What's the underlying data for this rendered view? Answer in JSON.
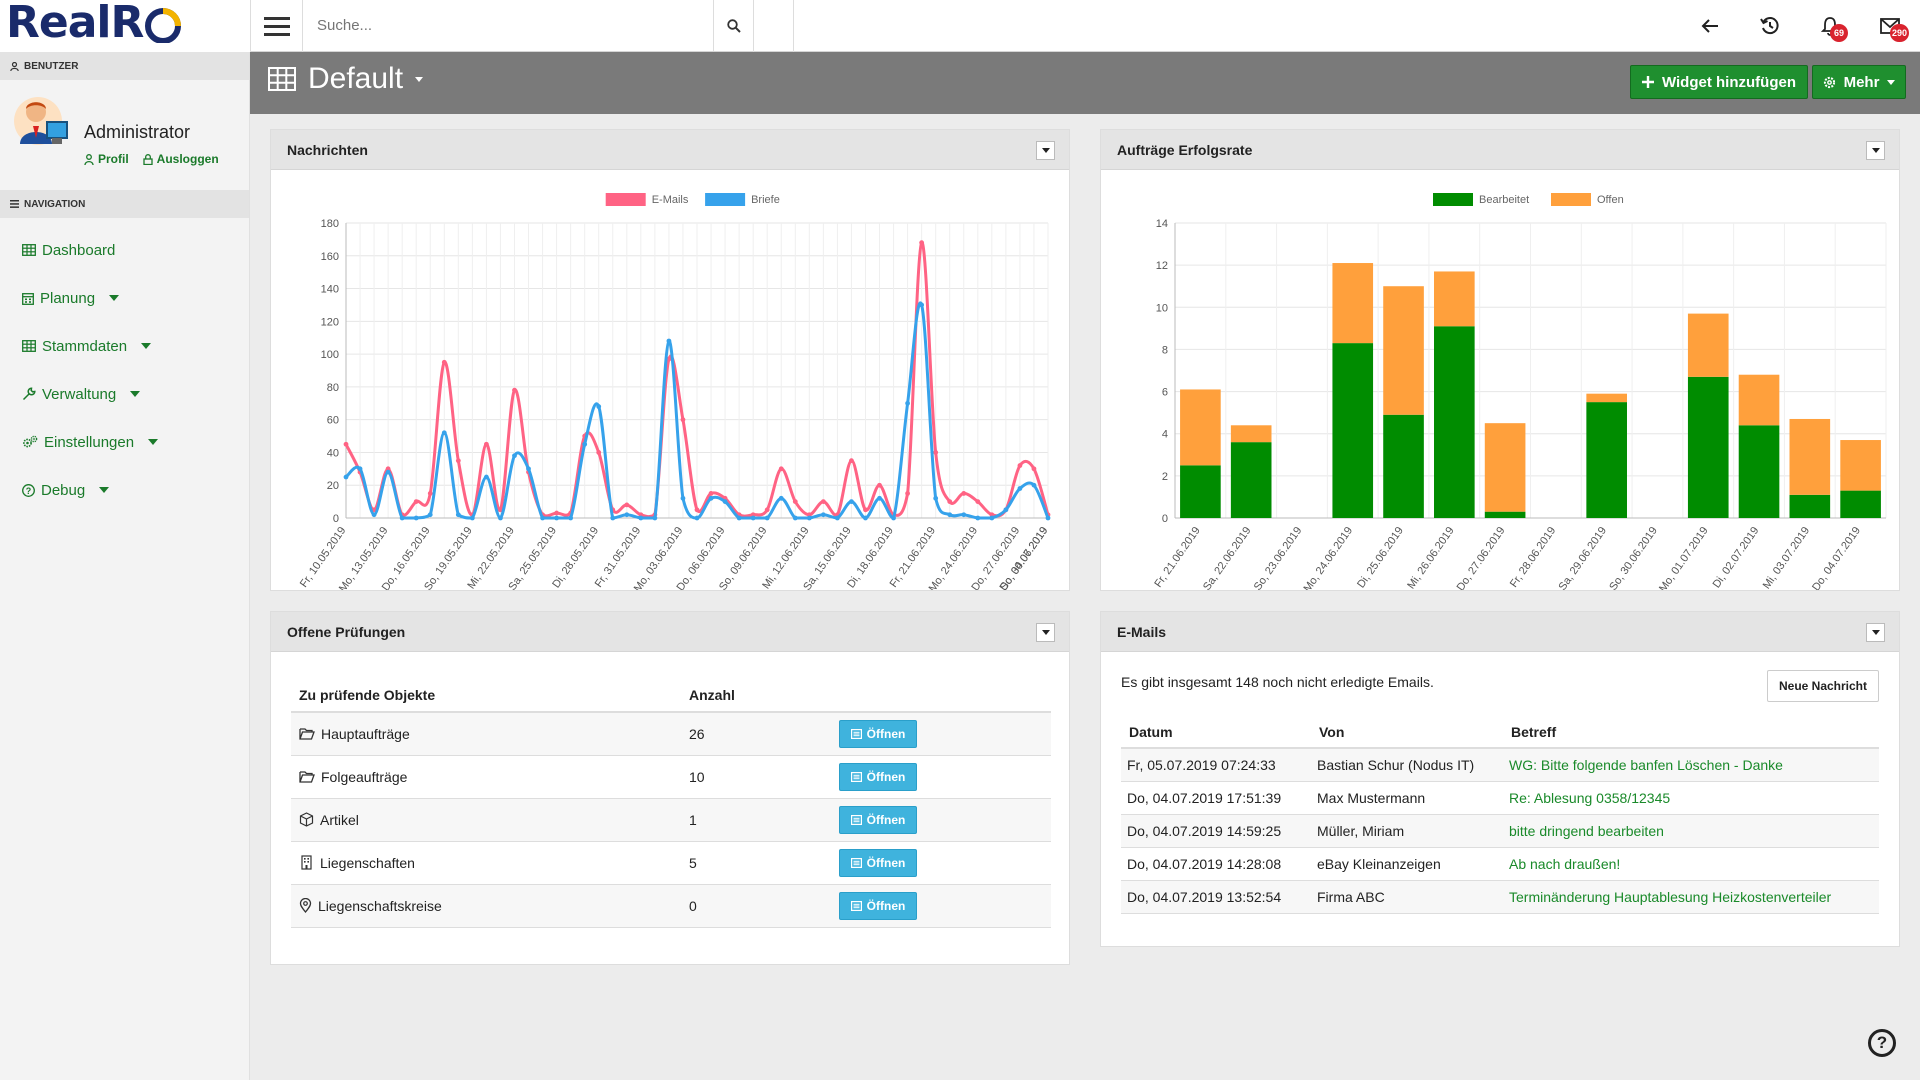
{
  "app": {
    "logo": "RealRoute"
  },
  "search": {
    "placeholder": "Suche..."
  },
  "notifications": {
    "alerts_count": "69",
    "mail_count": "290"
  },
  "sidebar": {
    "user_section": "BENUTZER",
    "user_name": "Administrator",
    "profile_label": "Profil",
    "logout_label": "Ausloggen",
    "nav_section": "NAVIGATION",
    "items": [
      {
        "label": "Dashboard",
        "icon": "grid-icon",
        "has_dropdown": false
      },
      {
        "label": "Planung",
        "icon": "calendar-icon",
        "has_dropdown": true
      },
      {
        "label": "Stammdaten",
        "icon": "grid-icon",
        "has_dropdown": true
      },
      {
        "label": "Verwaltung",
        "icon": "wrench-icon",
        "has_dropdown": true
      },
      {
        "label": "Einstellungen",
        "icon": "cogs-icon",
        "has_dropdown": true
      },
      {
        "label": "Debug",
        "icon": "question-circle-icon",
        "has_dropdown": true
      }
    ]
  },
  "page": {
    "title": "Default",
    "add_widget_label": "Widget hinzufügen",
    "more_label": "Mehr"
  },
  "panels": {
    "messages": {
      "title": "Nachrichten"
    },
    "success_rate": {
      "title": "Aufträge Erfolgsrate"
    },
    "checks": {
      "title": "Offene Prüfungen"
    },
    "emails": {
      "title": "E-Mails"
    }
  },
  "checks": {
    "col_object": "Zu prüfende Objekte",
    "col_count": "Anzahl",
    "open_label": "Öffnen",
    "rows": [
      {
        "label": "Hauptaufträge",
        "count": "26",
        "icon": "folder-open-icon"
      },
      {
        "label": "Folgeaufträge",
        "count": "10",
        "icon": "folder-open-icon"
      },
      {
        "label": "Artikel",
        "count": "1",
        "icon": "cube-icon"
      },
      {
        "label": "Liegenschaften",
        "count": "5",
        "icon": "building-icon"
      },
      {
        "label": "Liegenschaftskreise",
        "count": "0",
        "icon": "map-marker-icon"
      }
    ]
  },
  "emails": {
    "summary": "Es gibt insgesamt 148 noch nicht erledigte Emails.",
    "new_label": "Neue Nachricht",
    "col_date": "Datum",
    "col_from": "Von",
    "col_subject": "Betreff",
    "rows": [
      {
        "date": "Fr, 05.07.2019 07:24:33",
        "from": "Bastian Schur (Nodus IT)",
        "subject": "WG: Bitte folgende banfen Löschen - Danke"
      },
      {
        "date": "Do, 04.07.2019 17:51:39",
        "from": "Max Mustermann",
        "subject": "Re: Ablesung 0358/12345"
      },
      {
        "date": "Do, 04.07.2019 14:59:25",
        "from": "Müller, Miriam",
        "subject": "bitte dringend bearbeiten"
      },
      {
        "date": "Do, 04.07.2019 14:28:08",
        "from": "eBay Kleinanzeigen",
        "subject": "Ab nach draußen!"
      },
      {
        "date": "Do, 04.07.2019 13:52:54",
        "from": "Firma ABC",
        "subject": "Terminänderung Hauptablesung Heizkostenverteiler"
      }
    ]
  },
  "chart_data": [
    {
      "type": "line",
      "title": "Nachrichten",
      "ylim": [
        0,
        180
      ],
      "yticks": [
        0,
        20,
        40,
        60,
        80,
        100,
        120,
        140,
        160,
        180
      ],
      "tick_labels": [
        "Fr, 10.05.2019",
        "Mo, 13.05.2019",
        "Do, 16.05.2019",
        "So, 19.05.2019",
        "Mi, 22.05.2019",
        "Sa, 25.05.2019",
        "Di, 28.05.2019",
        "Fr, 31.05.2019",
        "Mo, 03.06.2019",
        "Do, 06.06.2019",
        "So, 09.06.2019",
        "Mi, 12.06.2019",
        "Sa, 15.06.2019",
        "Di, 18.06.2019",
        "Fr, 21.06.2019",
        "Mo, 24.06.2019",
        "Do, 27.06.2019",
        "So, 30.06.2019",
        "Do, 04.07.2019"
      ],
      "tick_every": 3,
      "colors": {
        "E-Mails": "#ff6384",
        "Briefe": "#36a2eb"
      },
      "series": [
        {
          "name": "E-Mails",
          "values": [
            45,
            28,
            5,
            30,
            2,
            10,
            15,
            95,
            35,
            2,
            45,
            5,
            78,
            28,
            2,
            3,
            3,
            50,
            40,
            5,
            8,
            2,
            2,
            97,
            60,
            5,
            15,
            12,
            2,
            2,
            5,
            30,
            10,
            2,
            10,
            2,
            35,
            5,
            20,
            2,
            15,
            168,
            40,
            10,
            15,
            10,
            2,
            5,
            32,
            30,
            2
          ]
        },
        {
          "name": "Briefe",
          "values": [
            25,
            30,
            2,
            28,
            0,
            0,
            2,
            52,
            2,
            0,
            25,
            0,
            38,
            30,
            0,
            0,
            0,
            45,
            68,
            0,
            2,
            0,
            0,
            108,
            12,
            0,
            12,
            10,
            0,
            0,
            0,
            12,
            0,
            0,
            2,
            0,
            10,
            0,
            12,
            0,
            70,
            130,
            12,
            2,
            2,
            0,
            0,
            5,
            18,
            20,
            0
          ]
        }
      ]
    },
    {
      "type": "bar",
      "stacked": true,
      "title": "Aufträge Erfolgsrate",
      "ylim": [
        0,
        14
      ],
      "yticks": [
        0,
        2,
        4,
        6,
        8,
        10,
        12,
        14
      ],
      "categories": [
        "Fr, 21.06.2019",
        "Sa, 22.06.2019",
        "So, 23.06.2019",
        "Mo, 24.06.2019",
        "Di, 25.06.2019",
        "Mi, 26.06.2019",
        "Do, 27.06.2019",
        "Fr, 28.06.2019",
        "Sa, 29.06.2019",
        "So, 30.06.2019",
        "Mo, 01.07.2019",
        "Di, 02.07.2019",
        "Mi, 03.07.2019",
        "Do, 04.07.2019"
      ],
      "colors": {
        "Bearbeitet": "#008c00",
        "Offen": "#ffa03c"
      },
      "series": [
        {
          "name": "Bearbeitet",
          "values": [
            2.5,
            3.6,
            0,
            8.3,
            4.9,
            9.1,
            0.3,
            0,
            5.5,
            0,
            6.7,
            4.4,
            1.1,
            1.3
          ]
        },
        {
          "name": "Offen",
          "values": [
            3.6,
            0.8,
            0,
            3.8,
            6.1,
            2.6,
            4.2,
            0,
            0.4,
            0,
            3.0,
            2.4,
            3.6,
            2.4
          ]
        }
      ]
    }
  ]
}
